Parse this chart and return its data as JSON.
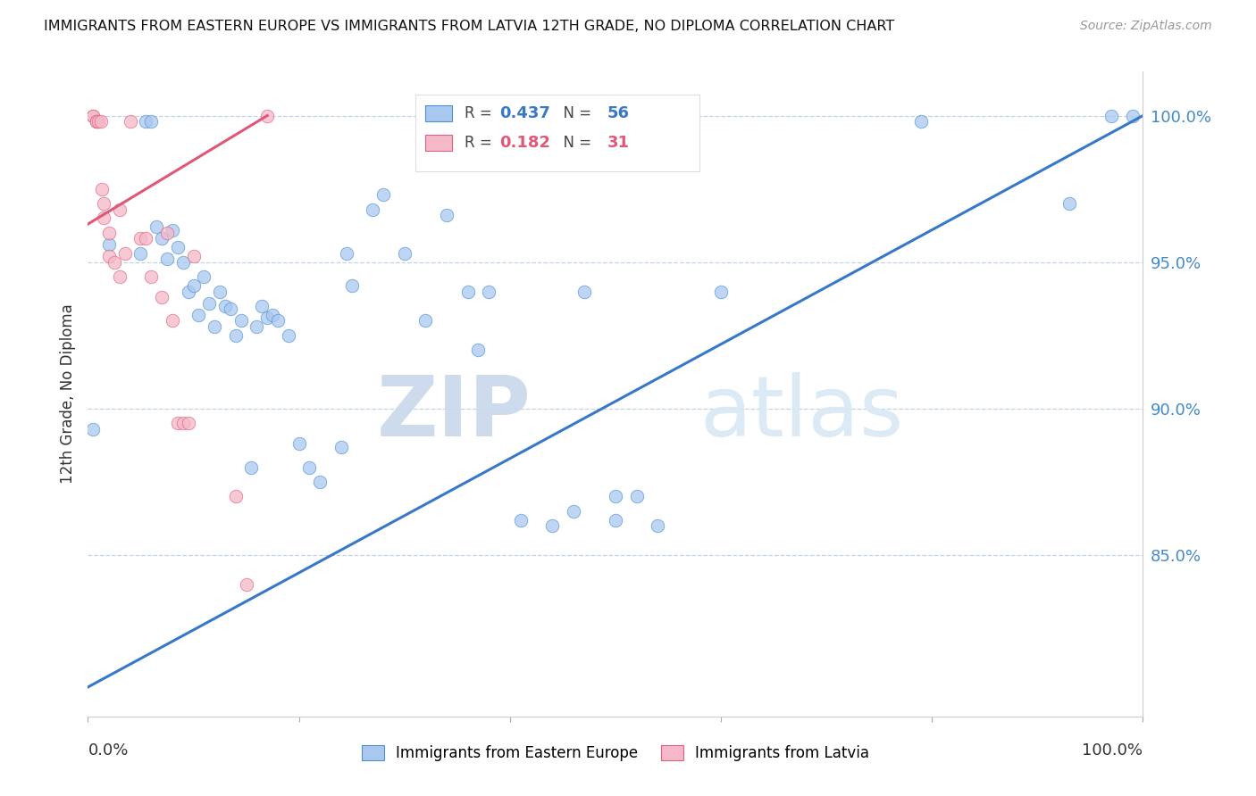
{
  "title": "IMMIGRANTS FROM EASTERN EUROPE VS IMMIGRANTS FROM LATVIA 12TH GRADE, NO DIPLOMA CORRELATION CHART",
  "source": "Source: ZipAtlas.com",
  "ylabel": "12th Grade, No Diploma",
  "ytick_labels": [
    "100.0%",
    "95.0%",
    "90.0%",
    "85.0%"
  ],
  "ytick_values": [
    1.0,
    0.95,
    0.9,
    0.85
  ],
  "xlim": [
    0.0,
    1.0
  ],
  "ylim": [
    0.795,
    1.015
  ],
  "blue_R": "0.437",
  "blue_N": "56",
  "pink_R": "0.182",
  "pink_N": "31",
  "blue_color": "#a8c8f0",
  "pink_color": "#f5b8c8",
  "blue_edge_color": "#5090d0",
  "pink_edge_color": "#e06080",
  "blue_line_color": "#3878c8",
  "pink_line_color": "#e05878",
  "watermark_zip": "ZIP",
  "watermark_atlas": "atlas",
  "blue_scatter_x": [
    0.005,
    0.02,
    0.05,
    0.055,
    0.06,
    0.065,
    0.07,
    0.075,
    0.08,
    0.085,
    0.09,
    0.095,
    0.1,
    0.105,
    0.11,
    0.115,
    0.12,
    0.125,
    0.13,
    0.135,
    0.14,
    0.145,
    0.155,
    0.16,
    0.165,
    0.17,
    0.175,
    0.18,
    0.19,
    0.2,
    0.21,
    0.22,
    0.24,
    0.245,
    0.25,
    0.27,
    0.28,
    0.3,
    0.32,
    0.34,
    0.36,
    0.37,
    0.38,
    0.41,
    0.44,
    0.46,
    0.47,
    0.5,
    0.5,
    0.52,
    0.54,
    0.6,
    0.79,
    0.93,
    0.97,
    0.99
  ],
  "blue_scatter_y": [
    0.893,
    0.956,
    0.953,
    0.998,
    0.998,
    0.962,
    0.958,
    0.951,
    0.961,
    0.955,
    0.95,
    0.94,
    0.942,
    0.932,
    0.945,
    0.936,
    0.928,
    0.94,
    0.935,
    0.934,
    0.925,
    0.93,
    0.88,
    0.928,
    0.935,
    0.931,
    0.932,
    0.93,
    0.925,
    0.888,
    0.88,
    0.875,
    0.887,
    0.953,
    0.942,
    0.968,
    0.973,
    0.953,
    0.93,
    0.966,
    0.94,
    0.92,
    0.94,
    0.862,
    0.86,
    0.865,
    0.94,
    0.87,
    0.862,
    0.87,
    0.86,
    0.94,
    0.998,
    0.97,
    1.0,
    1.0
  ],
  "pink_scatter_x": [
    0.005,
    0.005,
    0.008,
    0.008,
    0.01,
    0.012,
    0.013,
    0.015,
    0.015,
    0.02,
    0.02,
    0.025,
    0.03,
    0.03,
    0.035,
    0.04,
    0.05,
    0.055,
    0.06,
    0.07,
    0.075,
    0.08,
    0.085,
    0.09,
    0.095,
    0.1,
    0.14,
    0.15,
    0.17,
    0.5,
    0.51
  ],
  "pink_scatter_y": [
    1.0,
    1.0,
    0.998,
    0.998,
    0.998,
    0.998,
    0.975,
    0.97,
    0.965,
    0.96,
    0.952,
    0.95,
    0.968,
    0.945,
    0.953,
    0.998,
    0.958,
    0.958,
    0.945,
    0.938,
    0.96,
    0.93,
    0.895,
    0.895,
    0.895,
    0.952,
    0.87,
    0.84,
    1.0,
    1.0,
    1.0
  ],
  "blue_line_y0": 0.805,
  "blue_line_y1": 1.0,
  "pink_line_x0": 0.0,
  "pink_line_x1": 0.17,
  "pink_line_y0": 0.963,
  "pink_line_y1": 1.0
}
